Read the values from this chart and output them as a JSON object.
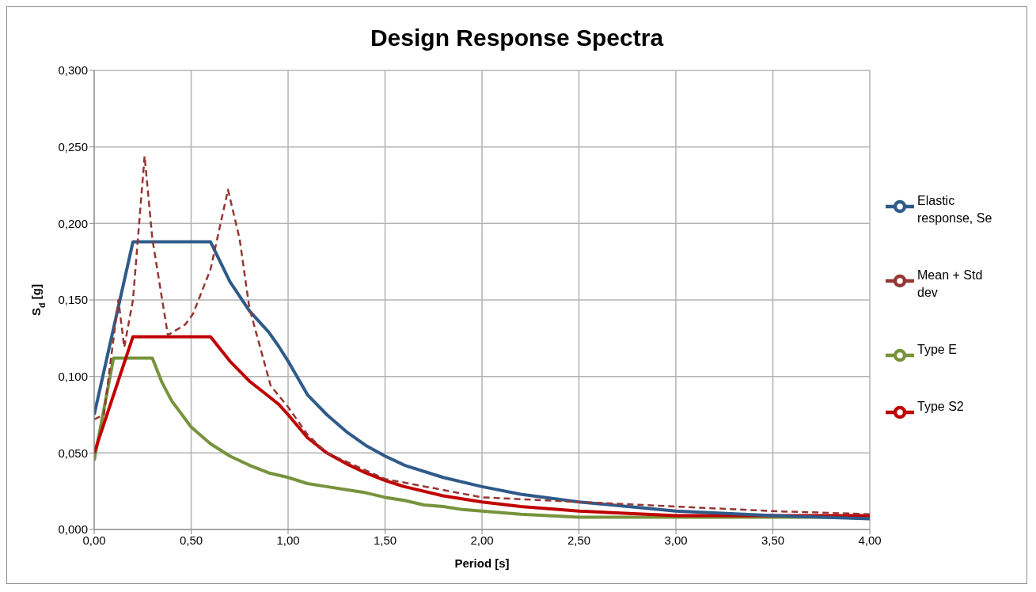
{
  "chart_data": {
    "type": "line",
    "title": "Design Response Spectra",
    "xlabel": "Period [s]",
    "ylabel": "S$_{d}$ [g]",
    "xlim": [
      0,
      4
    ],
    "xticks": [
      {
        "value": 0,
        "label": "0,00"
      },
      {
        "value": 0.5,
        "label": "0,50"
      },
      {
        "value": 1,
        "label": "1,00"
      },
      {
        "value": 1.5,
        "label": "1,50"
      },
      {
        "value": 2,
        "label": "2,00"
      },
      {
        "value": 2.5,
        "label": "2,50"
      },
      {
        "value": 3,
        "label": "3,00"
      },
      {
        "value": 3.5,
        "label": "3,50"
      },
      {
        "value": 4,
        "label": "4,00"
      }
    ],
    "ylim": [
      0,
      0.3
    ],
    "yticks": [
      {
        "value": 0,
        "label": "0,000"
      },
      {
        "value": 0.05,
        "label": "0,050"
      },
      {
        "value": 0.1,
        "label": "0,100"
      },
      {
        "value": 0.15,
        "label": "0,150"
      },
      {
        "value": 0.2,
        "label": "0,200"
      },
      {
        "value": 0.25,
        "label": "0,250"
      },
      {
        "value": 0.3,
        "label": "0,300"
      }
    ],
    "grid": true,
    "legend": "right",
    "marker": "none",
    "series": [
      {
        "name": "Type E",
        "color": "#77933c",
        "line_style": "solid",
        "x": [
          0,
          0.1,
          0.3,
          0.35,
          0.4,
          0.5,
          0.6,
          0.7,
          0.8,
          0.9,
          1.0,
          1.1,
          1.2,
          1.3,
          1.4,
          1.5,
          1.6,
          1.7,
          1.8,
          1.9,
          2.0,
          2.2,
          2.5,
          3.0,
          3.5,
          4.0
        ],
        "values": [
          0.045,
          0.112,
          0.112,
          0.096,
          0.084,
          0.067,
          0.056,
          0.048,
          0.042,
          0.037,
          0.034,
          0.03,
          0.028,
          0.026,
          0.024,
          0.021,
          0.019,
          0.016,
          0.015,
          0.013,
          0.012,
          0.01,
          0.008,
          0.008,
          0.008,
          0.008
        ]
      },
      {
        "name": "Type S2",
        "color": "#c00000",
        "line_style": "solid",
        "x": [
          0,
          0.2,
          0.6,
          0.7,
          0.8,
          0.9,
          0.95,
          1.0,
          1.1,
          1.2,
          1.3,
          1.4,
          1.5,
          1.6,
          1.8,
          2.0,
          2.2,
          2.5,
          3.0,
          3.5,
          4.0
        ],
        "values": [
          0.05,
          0.126,
          0.126,
          0.11,
          0.097,
          0.087,
          0.082,
          0.075,
          0.06,
          0.05,
          0.043,
          0.037,
          0.032,
          0.028,
          0.022,
          0.018,
          0.015,
          0.012,
          0.009,
          0.009,
          0.009
        ]
      },
      {
        "name": "Elastic response, Se",
        "color": "#2f5a8a",
        "line_style": "solid",
        "x": [
          0,
          0.2,
          0.6,
          0.7,
          0.8,
          0.9,
          0.95,
          1.0,
          1.1,
          1.2,
          1.3,
          1.4,
          1.5,
          1.6,
          1.8,
          2.0,
          2.2,
          2.5,
          3.0,
          3.5,
          4.0
        ],
        "values": [
          0.075,
          0.188,
          0.188,
          0.162,
          0.143,
          0.129,
          0.12,
          0.11,
          0.088,
          0.075,
          0.064,
          0.055,
          0.048,
          0.042,
          0.034,
          0.028,
          0.023,
          0.018,
          0.012,
          0.009,
          0.007
        ]
      },
      {
        "name": "Mean + Std dev",
        "color": "#953735",
        "line_style": "dashed",
        "x": [
          0,
          0.05,
          0.125,
          0.155,
          0.2,
          0.26,
          0.3,
          0.38,
          0.47,
          0.51,
          0.6,
          0.69,
          0.75,
          0.8,
          0.91,
          1.0,
          1.1,
          1.2,
          1.5,
          2.0,
          2.5,
          3.0,
          3.5,
          4.0
        ],
        "values": [
          0.072,
          0.075,
          0.15,
          0.119,
          0.15,
          0.244,
          0.19,
          0.127,
          0.134,
          0.141,
          0.17,
          0.222,
          0.19,
          0.145,
          0.094,
          0.08,
          0.062,
          0.05,
          0.033,
          0.021,
          0.018,
          0.015,
          0.012,
          0.01
        ]
      }
    ]
  }
}
